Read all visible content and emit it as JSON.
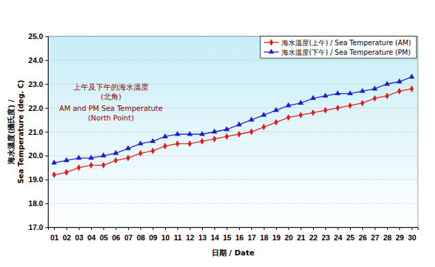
{
  "chart_data": {
    "type": "line",
    "annotations": [
      "上午及下午的海水溫度",
      "(北角)",
      "AM and PM Sea Temperatute",
      "(North Point)"
    ],
    "x_label": "日期 / Date",
    "y_label": [
      "海水溫度(攝氏度) /",
      "Sea Temperature (deg. C)"
    ],
    "categories": [
      "01",
      "02",
      "03",
      "04",
      "05",
      "06",
      "07",
      "08",
      "09",
      "10",
      "11",
      "12",
      "13",
      "14",
      "15",
      "16",
      "17",
      "18",
      "19",
      "20",
      "21",
      "22",
      "23",
      "24",
      "25",
      "26",
      "27",
      "28",
      "29",
      "30"
    ],
    "series": [
      {
        "name": "海水溫度(上午) / Sea Temperature (AM)",
        "color": "#e31a1c",
        "marker": "diamond",
        "values": [
          19.2,
          19.3,
          19.5,
          19.6,
          19.6,
          19.8,
          19.9,
          20.1,
          20.2,
          20.4,
          20.5,
          20.5,
          20.6,
          20.7,
          20.8,
          20.9,
          21.0,
          21.2,
          21.4,
          21.6,
          21.7,
          21.8,
          21.9,
          22.0,
          22.1,
          22.2,
          22.4,
          22.5,
          22.7,
          22.8
        ]
      },
      {
        "name": "海水溫度(下午) / Sea Temperature (PM)",
        "color": "#1a1ad6",
        "marker": "triangle",
        "values": [
          19.7,
          19.8,
          19.9,
          19.9,
          20.0,
          20.1,
          20.3,
          20.5,
          20.6,
          20.8,
          20.9,
          20.9,
          20.9,
          21.0,
          21.1,
          21.3,
          21.5,
          21.7,
          21.9,
          22.1,
          22.2,
          22.4,
          22.5,
          22.6,
          22.6,
          22.7,
          22.8,
          23.0,
          23.1,
          23.3
        ]
      }
    ],
    "ylim": [
      17,
      25
    ],
    "yticks": [
      {
        "value": 17,
        "label": "17.0"
      },
      {
        "value": 18,
        "label": "18.0"
      },
      {
        "value": 19,
        "label": "19.0"
      },
      {
        "value": 20,
        "label": "20.0"
      },
      {
        "value": 21,
        "label": "21.0"
      },
      {
        "value": 22,
        "label": "22.0"
      },
      {
        "value": 23,
        "label": "23.0"
      },
      {
        "value": 24,
        "label": "24.0"
      },
      {
        "value": 25,
        "label": "25.0"
      }
    ],
    "grid": true,
    "legend": "top-right"
  }
}
